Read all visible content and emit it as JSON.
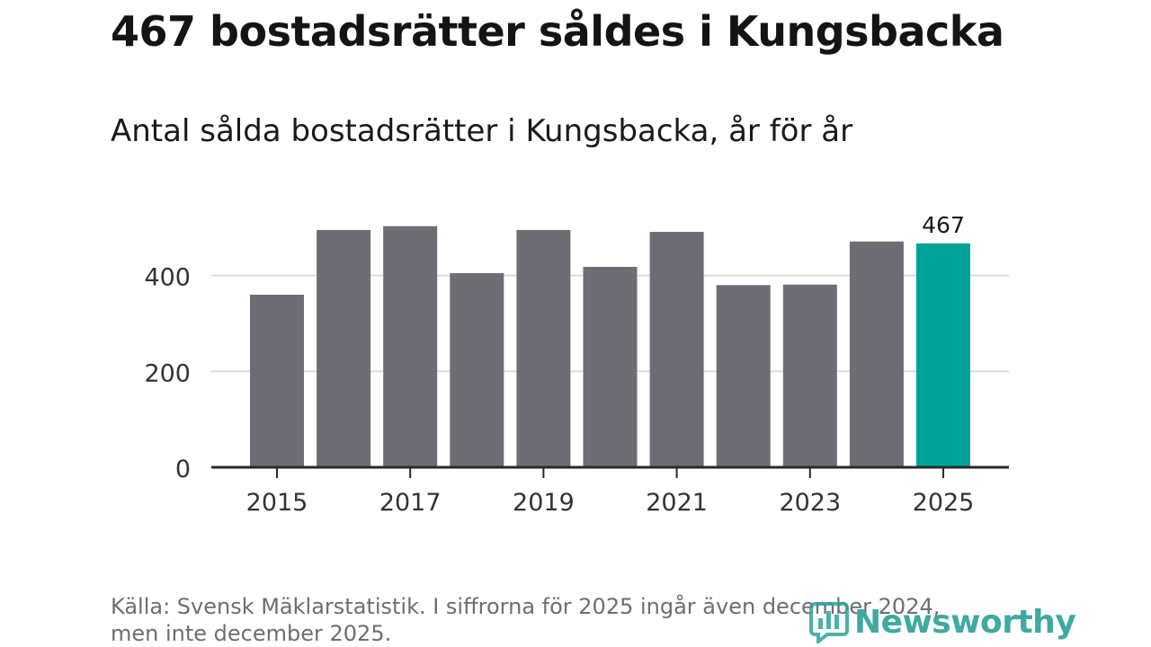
{
  "title": "467 bostadsrätter såldes i Kungsbacka",
  "subtitle": "Antal sålda bostadsrätter i Kungsbacka, år för år",
  "footer": {
    "line1": "Källa: Svensk Mäklarstatistik. I siffrorna för 2025 ingår även december 2024,",
    "line2": "men inte december 2025."
  },
  "logo": {
    "name": "Newsworthy",
    "icon": "chart-logo-icon",
    "color": "#2ea39a"
  },
  "colors": {
    "bar": "#6e6d73",
    "highlight": "#00a39a",
    "grid": "#dcdcdc",
    "axis": "#2a2a2a"
  },
  "chart_data": {
    "type": "bar",
    "title": "467 bostadsrätter såldes i Kungsbacka",
    "subtitle": "Antal sålda bostadsrätter i Kungsbacka, år för år",
    "categories": [
      "2015",
      "2016",
      "2017",
      "2018",
      "2019",
      "2020",
      "2021",
      "2022",
      "2023",
      "2024",
      "2025"
    ],
    "values": [
      360,
      495,
      503,
      405,
      495,
      418,
      491,
      380,
      381,
      471,
      467
    ],
    "highlight_index": 10,
    "data_labels": [
      {
        "index": 10,
        "text": "467"
      }
    ],
    "x_tick_labels": [
      "2015",
      "2017",
      "2019",
      "2021",
      "2023",
      "2025"
    ],
    "y_ticks": [
      0,
      200,
      400
    ],
    "y_tick_labels": [
      "0",
      "200",
      "400"
    ],
    "ylim": [
      0,
      560
    ],
    "xlabel": "",
    "ylabel": "",
    "grid": true
  }
}
